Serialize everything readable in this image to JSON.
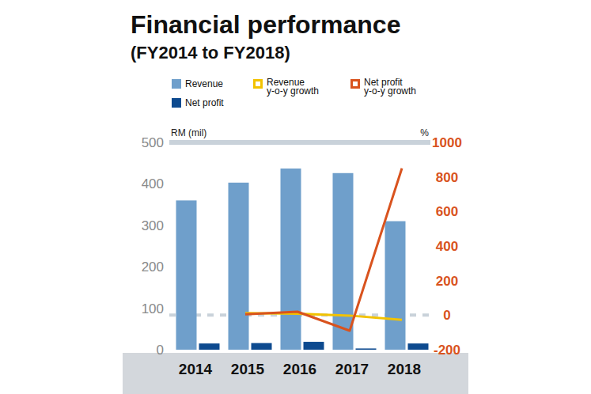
{
  "chart_data": {
    "type": "bar",
    "title": "Financial performance",
    "subtitle": "(FY2014 to FY2018)",
    "y_label": "RM (mil)",
    "y2_label": "%",
    "categories": [
      "2014",
      "2015",
      "2016",
      "2017",
      "2018"
    ],
    "series": [
      {
        "name": "Revenue",
        "type": "bar",
        "color": "#6f9fcb",
        "values": [
          360,
          403,
          437,
          426,
          310
        ]
      },
      {
        "name": "Net profit",
        "type": "bar",
        "color": "#0d4a8f",
        "values": [
          15,
          16,
          19,
          3,
          15
        ]
      },
      {
        "name": "Revenue y-o-y growth",
        "type": "line",
        "axis": "y2",
        "color": "#f2c200",
        "values": [
          null,
          11.9,
          8.4,
          -2.5,
          -27.2
        ]
      },
      {
        "name": "Net profit y-o-y growth",
        "type": "line",
        "axis": "y2",
        "color": "#d9531e",
        "values": [
          null,
          5,
          20,
          -90,
          850
        ]
      }
    ],
    "ylim": [
      0,
      500
    ],
    "yticks": [
      0,
      100,
      200,
      300,
      400,
      500
    ],
    "y2lim": [
      -200,
      1000
    ],
    "y2ticks": [
      -200,
      0,
      200,
      400,
      600,
      800,
      1000
    ],
    "grid": false,
    "legend": "top"
  }
}
